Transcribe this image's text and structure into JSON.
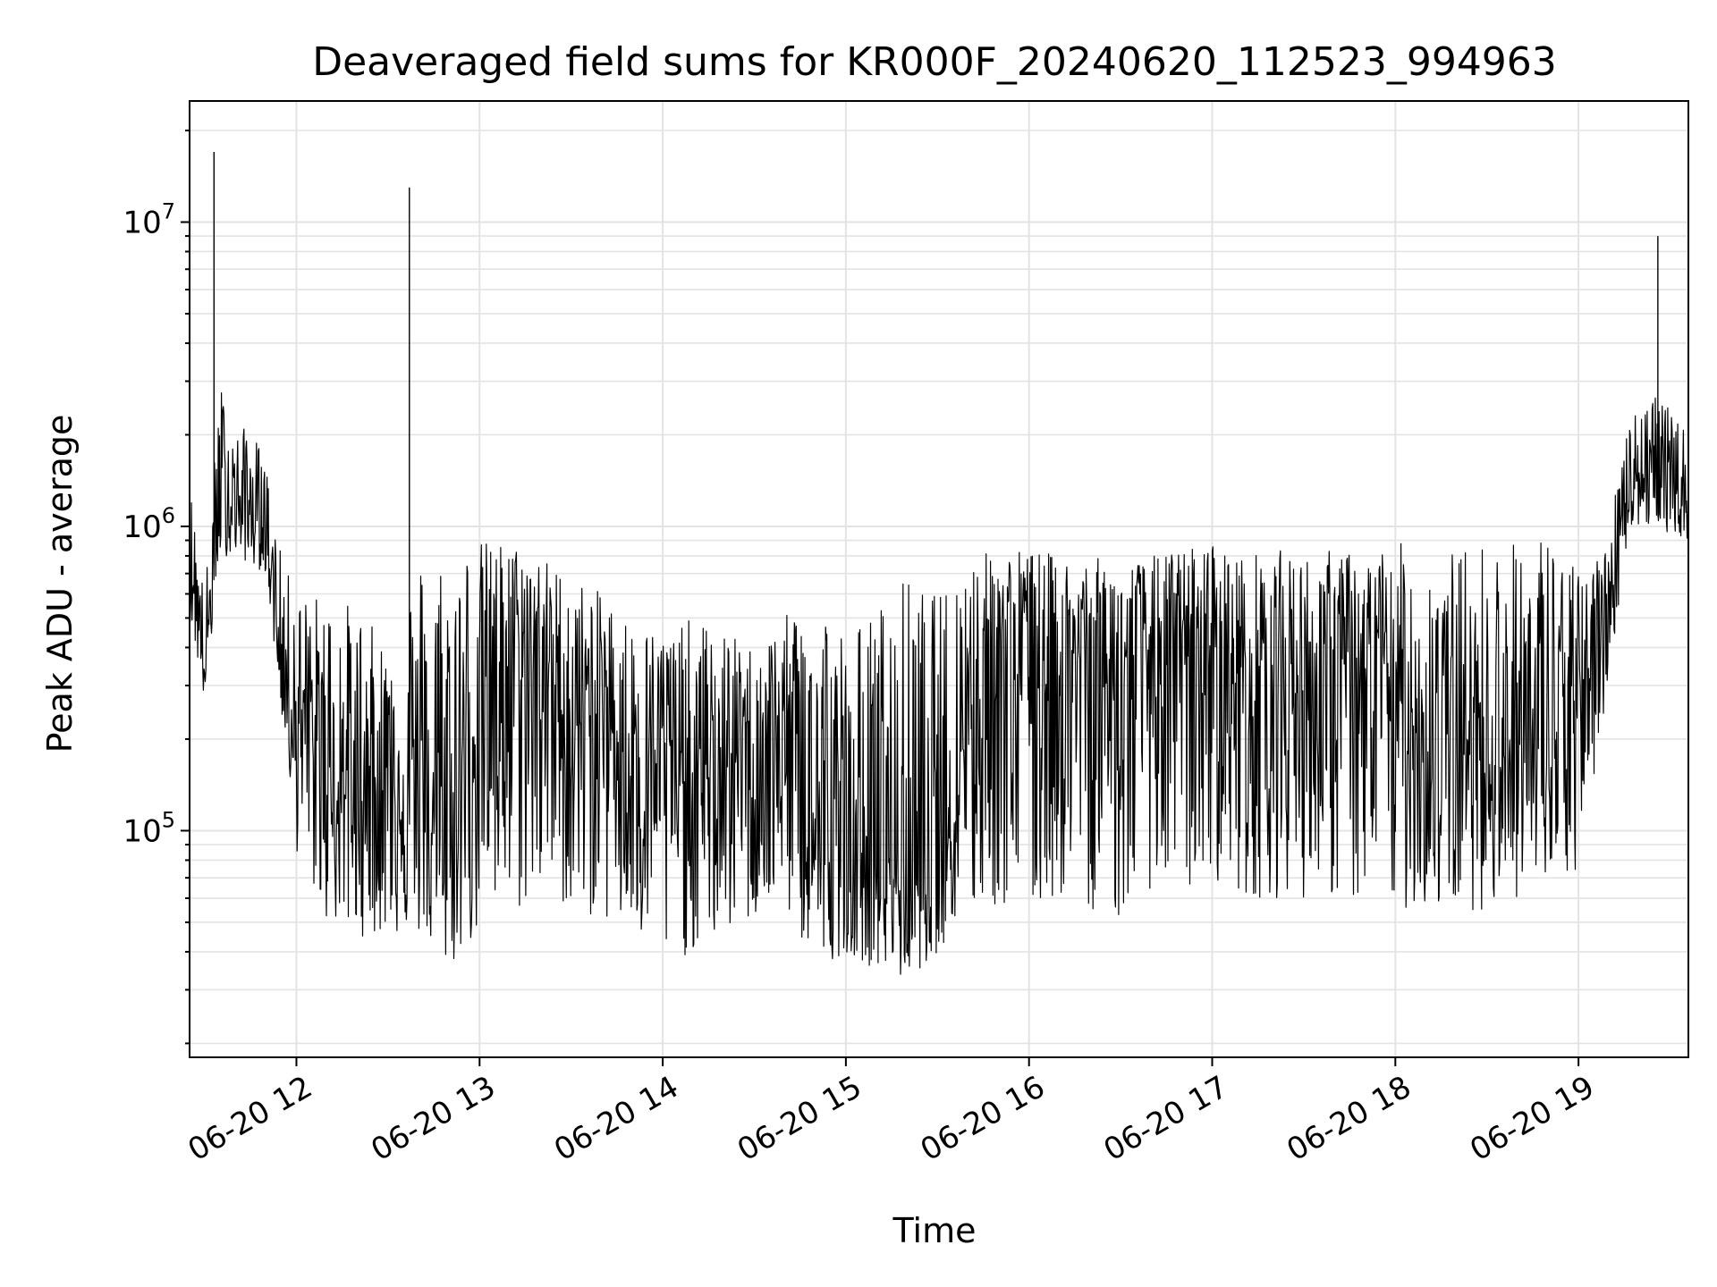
{
  "chart_data": {
    "type": "line",
    "title": "Deaveraged field sums for KR000F_20240620_112523_994963",
    "xlabel": "Time",
    "ylabel": "Peak ADU - average",
    "yscale": "log",
    "ylim": [
      18000,
      25000000
    ],
    "xlim": [
      "2024-06-20 11:25",
      "2024-06-20 19:36"
    ],
    "grid": true,
    "line_color": "#000000",
    "x_ticks": [
      "06-20 12",
      "06-20 13",
      "06-20 14",
      "06-20 15",
      "06-20 16",
      "06-20 17",
      "06-20 18",
      "06-20 19"
    ],
    "y_ticks": [
      {
        "base": "10",
        "exp": "5",
        "value": 100000
      },
      {
        "base": "10",
        "exp": "6",
        "value": 1000000
      },
      {
        "base": "10",
        "exp": "7",
        "value": 10000000
      }
    ],
    "series": [
      {
        "x": [
          "2024-06-20 11:25",
          "2024-06-20 11:30",
          "2024-06-20 11:35",
          "2024-06-20 11:40",
          "2024-06-20 11:45",
          "2024-06-20 11:50",
          "2024-06-20 11:55",
          "2024-06-20 12:00",
          "2024-06-20 12:10",
          "2024-06-20 12:20",
          "2024-06-20 12:30",
          "2024-06-20 12:40",
          "2024-06-20 12:50",
          "2024-06-20 13:00",
          "2024-06-20 13:10",
          "2024-06-20 13:20",
          "2024-06-20 13:30",
          "2024-06-20 13:40",
          "2024-06-20 13:50",
          "2024-06-20 14:00",
          "2024-06-20 14:10",
          "2024-06-20 14:20",
          "2024-06-20 14:30",
          "2024-06-20 14:40",
          "2024-06-20 14:50",
          "2024-06-20 15:00",
          "2024-06-20 15:10",
          "2024-06-20 15:20",
          "2024-06-20 15:30",
          "2024-06-20 15:40",
          "2024-06-20 15:50",
          "2024-06-20 16:00",
          "2024-06-20 16:10",
          "2024-06-20 16:20",
          "2024-06-20 16:30",
          "2024-06-20 16:40",
          "2024-06-20 16:50",
          "2024-06-20 17:00",
          "2024-06-20 17:10",
          "2024-06-20 17:20",
          "2024-06-20 17:30",
          "2024-06-20 17:40",
          "2024-06-20 17:50",
          "2024-06-20 18:00",
          "2024-06-20 18:10",
          "2024-06-20 18:20",
          "2024-06-20 18:30",
          "2024-06-20 18:40",
          "2024-06-20 18:50",
          "2024-06-20 19:00",
          "2024-06-20 19:10",
          "2024-06-20 19:15",
          "2024-06-20 19:20",
          "2024-06-20 19:25",
          "2024-06-20 19:30",
          "2024-06-20 19:36"
        ],
        "y": [
          900000,
          330000,
          1300000,
          1200000,
          1100000,
          1000000,
          350000,
          250000,
          150000,
          120000,
          180000,
          120000,
          80000,
          300000,
          350000,
          400000,
          200000,
          300000,
          150000,
          200000,
          130000,
          170000,
          180000,
          200000,
          90000,
          70000,
          80000,
          65000,
          70000,
          300000,
          350000,
          400000,
          350000,
          380000,
          300000,
          400000,
          350000,
          400000,
          300000,
          350000,
          300000,
          350000,
          300000,
          280000,
          200000,
          180000,
          200000,
          180000,
          160000,
          250000,
          600000,
          1300000,
          1500000,
          1400000,
          1300000,
          1200000
        ],
        "upper": [
          1400000,
          600000,
          3000000,
          2000000,
          2200000,
          1600000,
          800000,
          600000,
          600000,
          550000,
          400000,
          800000,
          900000,
          900000,
          900000,
          800000,
          700000,
          600000,
          500000,
          450000,
          500000,
          450000,
          400000,
          500000,
          700000,
          450000,
          550000,
          700000,
          600000,
          800000,
          850000,
          850000,
          800000,
          800000,
          750000,
          800000,
          850000,
          900000,
          800000,
          850000,
          800000,
          850000,
          800000,
          900000,
          800000,
          850000,
          900000,
          900000,
          1000000,
          700000,
          900000,
          2200000,
          2600000,
          2800000,
          2400000,
          2000000
        ],
        "lower": [
          500000,
          260000,
          800000,
          800000,
          750000,
          700000,
          250000,
          85000,
          50000,
          45000,
          45000,
          45000,
          35000,
          45000,
          50000,
          60000,
          55000,
          50000,
          45000,
          35000,
          40000,
          45000,
          50000,
          55000,
          35000,
          40000,
          35000,
          32000,
          40000,
          50000,
          55000,
          50000,
          60000,
          55000,
          50000,
          65000,
          60000,
          70000,
          60000,
          60000,
          60000,
          60000,
          55000,
          55000,
          55000,
          55000,
          55000,
          60000,
          65000,
          70000,
          300000,
          800000,
          1000000,
          1000000,
          950000,
          900000
        ],
        "spikes": [
          {
            "x": "2024-06-20 11:33",
            "y": 17000000
          },
          {
            "x": "2024-06-20 12:37",
            "y": 13000000
          },
          {
            "x": "2024-06-20 19:26",
            "y": 9000000
          }
        ]
      }
    ]
  }
}
